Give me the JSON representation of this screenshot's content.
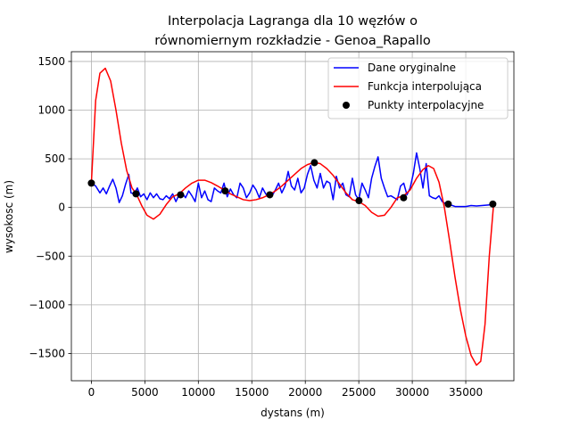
{
  "chart_data": {
    "type": "line",
    "title": "Interpolacja Lagranga dla 10 węzłów o\nrównomiernym rozkładzie - Genoa_Rapallo",
    "xlabel": "dystans (m)",
    "ylabel": "wysokosc (m)",
    "xlim": [
      -1870,
      39500
    ],
    "ylim": [
      -1780,
      1600
    ],
    "xticks": [
      0,
      5000,
      10000,
      15000,
      20000,
      25000,
      30000,
      35000
    ],
    "yticks": [
      -1500,
      -1000,
      -500,
      0,
      500,
      1000,
      1500
    ],
    "xtick_labels": [
      "0",
      "5000",
      "10000",
      "15000",
      "20000",
      "25000",
      "30000",
      "35000"
    ],
    "ytick_labels": [
      "−1500",
      "−1000",
      "−500",
      "0",
      "500",
      "1000",
      "1500"
    ],
    "grid": true,
    "legend_position": "upper right",
    "series": [
      {
        "name": "Dane oryginalne",
        "color": "#0000ff",
        "style": "line",
        "x": [
          0,
          400,
          800,
          1100,
          1400,
          1700,
          2000,
          2300,
          2600,
          2900,
          3200,
          3500,
          3700,
          4000,
          4300,
          4600,
          4900,
          5200,
          5500,
          5800,
          6100,
          6400,
          6700,
          7000,
          7300,
          7600,
          7900,
          8200,
          8500,
          8800,
          9100,
          9400,
          9700,
          10000,
          10300,
          10600,
          10900,
          11200,
          11500,
          11800,
          12100,
          12400,
          12700,
          13000,
          13300,
          13600,
          13900,
          14200,
          14500,
          14800,
          15100,
          15400,
          15700,
          16000,
          16300,
          16600,
          16900,
          17200,
          17500,
          17800,
          18100,
          18400,
          18700,
          19000,
          19300,
          19600,
          19900,
          20200,
          20500,
          20800,
          21100,
          21400,
          21700,
          22000,
          22300,
          22600,
          22900,
          23200,
          23500,
          23800,
          24100,
          24400,
          24700,
          25000,
          25300,
          25600,
          25900,
          26200,
          26500,
          26800,
          27100,
          27400,
          27700,
          28000,
          28300,
          28600,
          28900,
          29200,
          29500,
          29800,
          30100,
          30400,
          30700,
          31000,
          31300,
          31600,
          31900,
          32200,
          32500,
          32800,
          33100,
          33500,
          34000,
          34500,
          35000,
          35500,
          36000,
          36500,
          37000,
          37600
        ],
        "y": [
          250,
          220,
          150,
          200,
          140,
          220,
          290,
          200,
          50,
          120,
          240,
          340,
          150,
          140,
          200,
          110,
          140,
          80,
          150,
          100,
          140,
          90,
          80,
          120,
          90,
          140,
          60,
          130,
          150,
          100,
          170,
          120,
          60,
          250,
          100,
          170,
          80,
          60,
          200,
          170,
          150,
          250,
          110,
          190,
          130,
          100,
          250,
          200,
          100,
          150,
          230,
          180,
          100,
          200,
          140,
          110,
          120,
          180,
          250,
          150,
          220,
          370,
          220,
          180,
          300,
          150,
          200,
          340,
          430,
          280,
          200,
          350,
          200,
          270,
          250,
          80,
          320,
          200,
          250,
          130,
          110,
          300,
          130,
          80,
          250,
          180,
          100,
          300,
          420,
          520,
          300,
          200,
          110,
          120,
          100,
          80,
          220,
          250,
          130,
          200,
          350,
          560,
          400,
          200,
          450,
          120,
          100,
          90,
          120,
          60,
          40,
          30,
          10,
          10,
          10,
          20,
          15,
          20,
          25,
          30
        ],
        "legend_label": "Dane oryginalne"
      },
      {
        "name": "Funkcja interpolująca",
        "color": "#ff0000",
        "style": "line",
        "x": [
          0,
          400,
          800,
          1300,
          1800,
          2300,
          2800,
          3300,
          3800,
          4200,
          4700,
          5200,
          5800,
          6400,
          7000,
          7600,
          8200,
          8800,
          9400,
          10000,
          10600,
          11200,
          11800,
          12400,
          13000,
          13600,
          14200,
          14800,
          15400,
          16000,
          16600,
          17200,
          17800,
          18400,
          19000,
          19600,
          20200,
          20800,
          21400,
          22000,
          22600,
          23200,
          23800,
          24400,
          25000,
          25600,
          26200,
          26800,
          27400,
          28000,
          28600,
          29200,
          29800,
          30400,
          31000,
          31500,
          32000,
          32500,
          33000,
          33500,
          34000,
          34500,
          35000,
          35500,
          36000,
          36400,
          36800,
          37200,
          37600
        ],
        "y": [
          250,
          1100,
          1380,
          1430,
          1300,
          1000,
          660,
          380,
          200,
          140,
          20,
          -80,
          -120,
          -70,
          30,
          110,
          140,
          200,
          250,
          280,
          280,
          255,
          220,
          180,
          140,
          110,
          80,
          70,
          80,
          100,
          130,
          170,
          220,
          280,
          340,
          400,
          440,
          462,
          450,
          400,
          330,
          240,
          150,
          80,
          60,
          20,
          -50,
          -90,
          -80,
          0,
          100,
          120,
          180,
          300,
          390,
          430,
          400,
          260,
          0,
          -350,
          -720,
          -1050,
          -1320,
          -1520,
          -1620,
          -1580,
          -1200,
          -500,
          30
        ],
        "legend_label": "Funkcja interpolująca"
      },
      {
        "name": "Punkty interpolacyjne",
        "color": "#000000",
        "style": "markers",
        "x": [
          0,
          4170,
          8340,
          12510,
          16680,
          20850,
          25020,
          29190,
          33360,
          37530
        ],
        "y": [
          250,
          140,
          130,
          170,
          130,
          460,
          70,
          100,
          35,
          35
        ],
        "legend_label": "Punkty interpolacyjne"
      }
    ]
  }
}
